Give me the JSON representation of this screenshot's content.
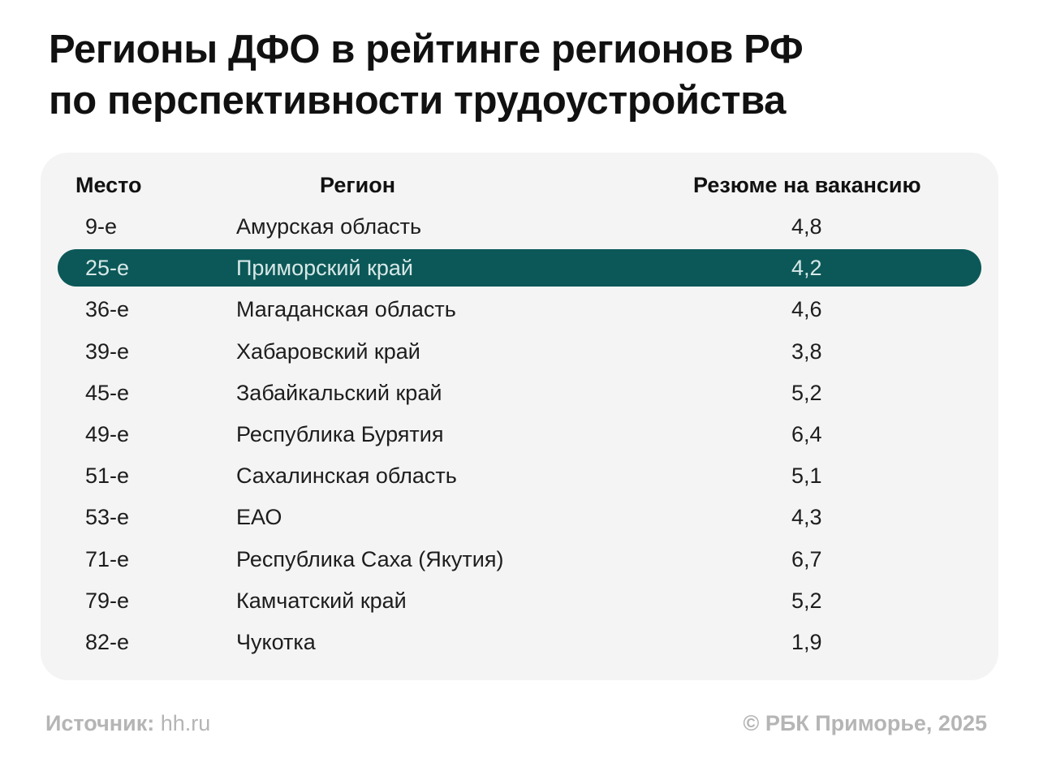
{
  "title": {
    "line1": "Регионы ДФО в рейтинге регионов РФ",
    "line2": "по перспективности трудоустройства"
  },
  "footer": {
    "source_label": "Источник:",
    "source_value": "hh.ru",
    "copyright": "© РБК Приморье, 2025"
  },
  "colors": {
    "highlight": "#0c5858",
    "card_background": "#f4f4f4",
    "footer_text": "#b5b5b5"
  },
  "chart_data": {
    "type": "table",
    "columns": [
      "Место",
      "Регион",
      "Резюме на вакансию"
    ],
    "highlight_row": 1,
    "rows": [
      {
        "rank": "9-е",
        "region": "Амурская область",
        "value": "4,8"
      },
      {
        "rank": "25-е",
        "region": "Приморский край",
        "value": "4,2"
      },
      {
        "rank": "36-е",
        "region": "Магаданская область",
        "value": "4,6"
      },
      {
        "rank": "39-е",
        "region": "Хабаровский край",
        "value": "3,8"
      },
      {
        "rank": "45-е",
        "region": "Забайкальский край",
        "value": "5,2"
      },
      {
        "rank": "49-е",
        "region": "Республика Бурятия",
        "value": "6,4"
      },
      {
        "rank": "51-е",
        "region": "Сахалинская область",
        "value": "5,1"
      },
      {
        "rank": "53-е",
        "region": "ЕАО",
        "value": "4,3"
      },
      {
        "rank": "71-е",
        "region": "Республика Саха (Якутия)",
        "value": "6,7"
      },
      {
        "rank": "79-е",
        "region": "Камчатский край",
        "value": "5,2"
      },
      {
        "rank": "82-е",
        "region": "Чукотка",
        "value": "1,9"
      }
    ]
  }
}
